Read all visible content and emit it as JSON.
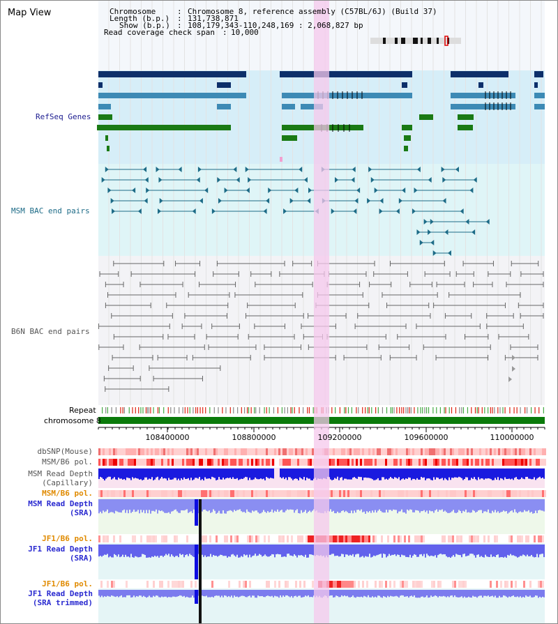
{
  "app_title": "Map View",
  "header": {
    "chromosome_key": "Chromosome",
    "chromosome_val": "Chromosome 8, reference assembly (C57BL/6J) (Build 37)",
    "length_key": "Length (b.p.)",
    "length_val": "131,738,871",
    "show_key": "Show (b.p.)",
    "show_val": "108,179,343-110,248,169 : 2,068,827 bp",
    "span_key": "Read coverage check span",
    "span_val": "10,000"
  },
  "tracks": {
    "refseq": "RefSeq Genes",
    "msm_bac": "MSM BAC end pairs",
    "b6n_bac": "B6N BAC end pairs",
    "repeat": "Repeat",
    "chromosome": "chromosome 8",
    "dbsnp": "dbSNP(Mouse)",
    "msm_b6_pol": "MSM/B6 pol.",
    "msm_depth_cap_1": "MSM Read Depth",
    "msm_depth_cap_2": "(Capillary)",
    "msm_b6_pol_2": "MSM/B6 pol.",
    "msm_depth_sra_1": "MSM Read Depth",
    "msm_depth_sra_2": "(SRA)",
    "jf1_b6_pol": "JF1/B6 pol.",
    "jf1_depth_sra_1": "JF1 Read Depth",
    "jf1_depth_sra_2": "(SRA)",
    "jf1_b6_pol_2": "JF1/B6 pol.",
    "jf1_depth_trim_1": "JF1 Read Depth",
    "jf1_depth_trim_2": "(SRA trimmed)"
  },
  "axis_ticks": [
    "108400000",
    "108800000",
    "109200000",
    "109600000",
    "110000000"
  ],
  "colors": {
    "refseq_blue_dark": "#0d2f6a",
    "refseq_blue_mid": "#3d8ab5",
    "refseq_green": "#1a7a14",
    "msm_bac_line": "#1d6b87",
    "b6n_line": "#666666",
    "chromosome_bar": "#0a7a0a",
    "highlight": "#f6c8ec",
    "label_navy": "#1b1b8f",
    "label_teal": "#1d6b87",
    "label_gray": "#555555",
    "label_orange": "#e08a00",
    "label_blue": "#2a2ad0"
  }
}
